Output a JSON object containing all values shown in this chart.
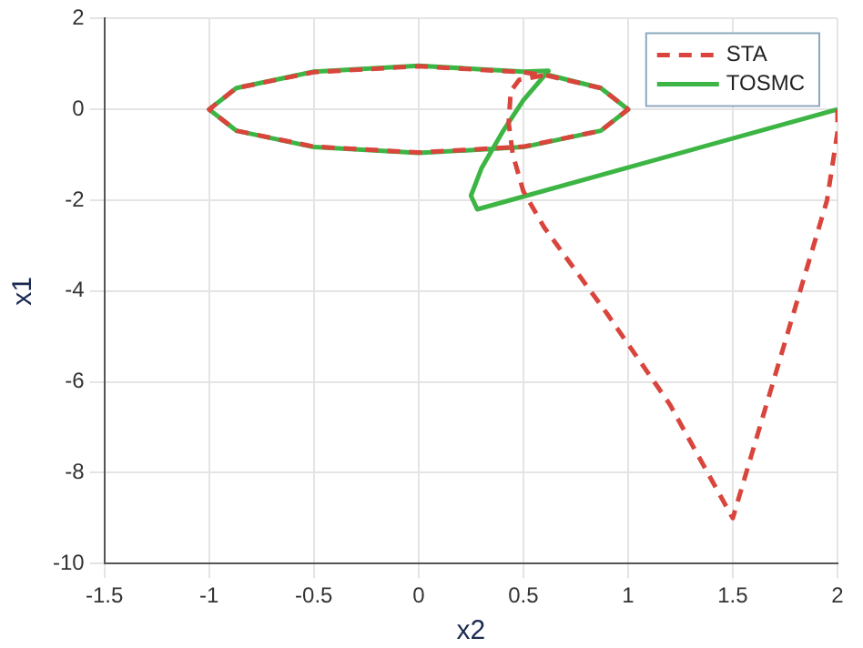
{
  "chart_data": {
    "type": "line",
    "xlabel": "x2",
    "ylabel": "x1",
    "xlim": [
      -1.5,
      2
    ],
    "xticks": [
      -1.5,
      -1,
      -0.5,
      0,
      0.5,
      1,
      1.5,
      2
    ],
    "ylim": [
      -10,
      2
    ],
    "yticks": [
      -10,
      -8,
      -6,
      -4,
      -2,
      0,
      2
    ],
    "grid": true,
    "legend": "top right",
    "marker": "none",
    "series": [
      {
        "name": "STA",
        "color": "#d9453c",
        "line_style": "dashed",
        "x": [
          2,
          2,
          1.95,
          1.5,
          1.2,
          0.9,
          0.6,
          0.5,
          0.45,
          0.43,
          0.44,
          0.48,
          0.6,
          0.5,
          0,
          -0.5,
          -0.87,
          -1,
          -0.87,
          -0.5,
          0,
          0.5,
          0.87,
          1,
          0.87,
          0.6
        ],
        "values": [
          0,
          -0.5,
          -2,
          -9,
          -6.5,
          -4.5,
          -2.6,
          -1.8,
          -1,
          -0.3,
          0.4,
          0.65,
          0.75,
          0.82,
          0.95,
          0.82,
          0.47,
          0,
          -0.47,
          -0.82,
          -0.95,
          -0.82,
          -0.47,
          0,
          0.47,
          0.76
        ]
      },
      {
        "name": "TOSMC",
        "color": "#3db544",
        "line_style": "solid",
        "x": [
          2,
          0.28,
          0.25,
          0.3,
          0.4,
          0.5,
          0.62,
          0.5,
          0,
          -0.5,
          -0.87,
          -1,
          -0.87,
          -0.5,
          0,
          0.5,
          0.87,
          1,
          0.87,
          0.6
        ],
        "values": [
          0,
          -2.2,
          -1.9,
          -1.3,
          -0.5,
          0.2,
          0.85,
          0.83,
          0.96,
          0.83,
          0.47,
          0,
          -0.47,
          -0.83,
          -0.96,
          -0.83,
          -0.47,
          0,
          0.47,
          0.78
        ]
      }
    ]
  }
}
